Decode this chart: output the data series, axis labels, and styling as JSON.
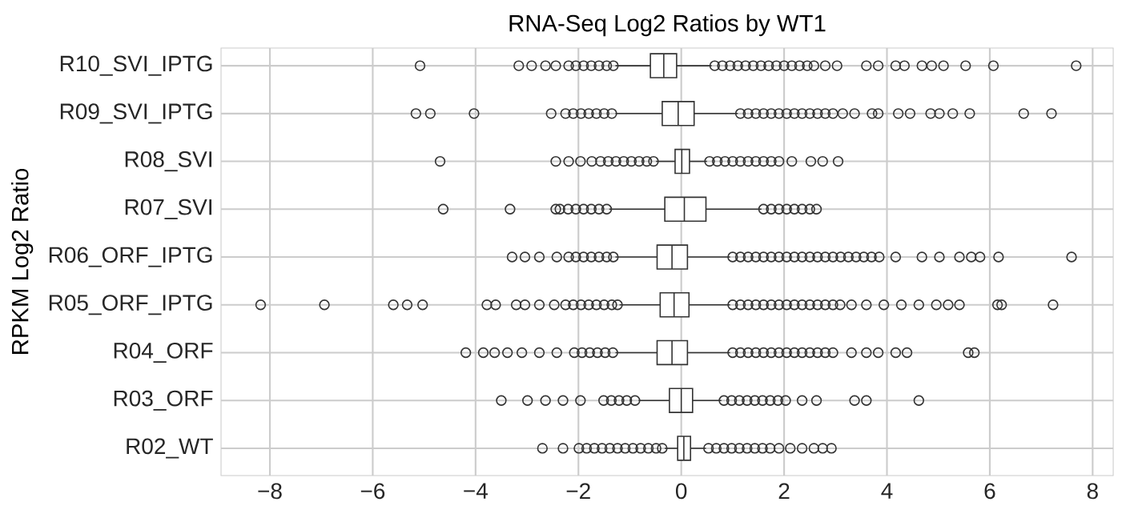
{
  "chart_data": {
    "type": "box",
    "orientation": "horizontal",
    "title": "RNA-Seq Log2 Ratios by WT1",
    "ylabel": "RPKM Log2 Ratio",
    "categories": [
      "R10_SVI_IPTG",
      "R09_SVI_IPTG",
      "R08_SVI",
      "R07_SVI",
      "R06_ORF_IPTG",
      "R05_ORF_IPTG",
      "R04_ORF",
      "R03_ORF",
      "R02_WT"
    ],
    "color": "#333333",
    "marker": "circle",
    "grid": true,
    "xlim": [
      -8.95,
      8.4
    ],
    "xticks": [
      {
        "value": -8,
        "label": "−8"
      },
      {
        "value": -6,
        "label": "−6"
      },
      {
        "value": -4,
        "label": "−4"
      },
      {
        "value": -2,
        "label": "−2"
      },
      0,
      2,
      4,
      6,
      8
    ],
    "boxes": [
      {
        "low": -1.28,
        "q1": -0.6,
        "median": -0.34,
        "q3": -0.09,
        "high": 0.59,
        "outliers": [
          -5.08,
          -3.16,
          -2.91,
          -2.64,
          -2.44,
          -2.19,
          -2.05,
          -1.9,
          -1.75,
          -1.6,
          -1.45,
          -1.32,
          0.65,
          0.8,
          0.95,
          1.1,
          1.25,
          1.4,
          1.55,
          1.7,
          1.85,
          2.0,
          2.15,
          2.3,
          2.45,
          2.58,
          2.8,
          3.03,
          3.6,
          3.83,
          4.17,
          4.34,
          4.68,
          4.87,
          5.1,
          5.53,
          6.07,
          7.68
        ]
      },
      {
        "low": -1.28,
        "q1": -0.37,
        "median": -0.06,
        "q3": 0.25,
        "high": 1.1,
        "outliers": [
          -5.16,
          -4.88,
          -4.03,
          -2.53,
          -2.25,
          -2.1,
          -1.95,
          -1.8,
          -1.65,
          -1.5,
          -1.35,
          1.15,
          1.3,
          1.45,
          1.6,
          1.75,
          1.9,
          2.05,
          2.2,
          2.35,
          2.5,
          2.65,
          2.8,
          2.95,
          3.14,
          3.37,
          3.71,
          3.83,
          4.22,
          4.45,
          4.85,
          5.02,
          5.28,
          5.61,
          6.66,
          7.2
        ]
      },
      {
        "low": -0.49,
        "q1": -0.12,
        "median": 0.01,
        "q3": 0.16,
        "high": 0.5,
        "outliers": [
          -4.69,
          -2.44,
          -2.19,
          -1.96,
          -1.74,
          -1.57,
          -1.42,
          -1.27,
          -1.12,
          -0.97,
          -0.82,
          -0.67,
          -0.54,
          0.55,
          0.7,
          0.85,
          1.0,
          1.15,
          1.3,
          1.45,
          1.6,
          1.75,
          1.9,
          2.15,
          2.52,
          2.75,
          3.05
        ]
      },
      {
        "low": -1.4,
        "q1": -0.32,
        "median": 0.06,
        "q3": 0.48,
        "high": 1.56,
        "outliers": [
          -4.63,
          -3.33,
          -2.44,
          -2.36,
          -2.2,
          -2.05,
          -1.9,
          -1.75,
          -1.6,
          -1.45,
          1.6,
          1.75,
          1.9,
          2.05,
          2.2,
          2.35,
          2.5,
          2.63
        ]
      },
      {
        "low": -1.28,
        "q1": -0.47,
        "median": -0.18,
        "q3": 0.12,
        "high": 0.95,
        "outliers": [
          -3.29,
          -3.04,
          -2.76,
          -2.42,
          -2.19,
          -2.05,
          -1.9,
          -1.75,
          -1.6,
          -1.45,
          -1.32,
          1.0,
          1.15,
          1.3,
          1.45,
          1.6,
          1.75,
          1.9,
          2.05,
          2.2,
          2.35,
          2.5,
          2.65,
          2.8,
          2.95,
          3.1,
          3.25,
          3.4,
          3.55,
          3.7,
          3.85,
          4.17,
          4.68,
          5.02,
          5.41,
          5.64,
          5.81,
          6.17,
          7.59
        ]
      },
      {
        "low": -1.2,
        "q1": -0.41,
        "median": -0.14,
        "q3": 0.15,
        "high": 0.95,
        "outliers": [
          -8.18,
          -6.94,
          -5.6,
          -5.33,
          -5.03,
          -3.78,
          -3.61,
          -3.21,
          -3.04,
          -2.76,
          -2.47,
          -2.25,
          -2.1,
          -1.95,
          -1.8,
          -1.65,
          -1.5,
          -1.35,
          -1.24,
          1.0,
          1.15,
          1.3,
          1.45,
          1.6,
          1.75,
          1.9,
          2.05,
          2.2,
          2.35,
          2.5,
          2.65,
          2.8,
          2.95,
          3.09,
          3.31,
          3.6,
          3.94,
          4.28,
          4.62,
          4.96,
          5.19,
          5.41,
          6.15,
          6.23,
          7.23
        ]
      },
      {
        "low": -1.28,
        "q1": -0.47,
        "median": -0.18,
        "q3": 0.12,
        "high": 0.95,
        "outliers": [
          -4.19,
          -3.85,
          -3.63,
          -3.38,
          -3.1,
          -2.76,
          -2.42,
          -2.08,
          -1.93,
          -1.78,
          -1.63,
          -1.48,
          -1.33,
          1.0,
          1.15,
          1.3,
          1.45,
          1.6,
          1.75,
          1.9,
          2.05,
          2.2,
          2.35,
          2.5,
          2.65,
          2.8,
          2.95,
          3.31,
          3.6,
          3.83,
          4.17,
          4.39,
          5.58,
          5.7
        ]
      },
      {
        "low": -0.83,
        "q1": -0.23,
        "median": 0.0,
        "q3": 0.22,
        "high": 0.78,
        "outliers": [
          -3.5,
          -2.99,
          -2.64,
          -2.3,
          -1.96,
          -1.51,
          -1.36,
          -1.21,
          -1.06,
          -0.9,
          0.83,
          0.98,
          1.13,
          1.28,
          1.43,
          1.58,
          1.73,
          1.88,
          2.03,
          2.35,
          2.63,
          3.37,
          3.6,
          4.62
        ]
      },
      {
        "low": -0.32,
        "q1": -0.07,
        "median": 0.05,
        "q3": 0.18,
        "high": 0.48,
        "outliers": [
          -2.7,
          -2.3,
          -1.99,
          -1.84,
          -1.69,
          -1.54,
          -1.39,
          -1.24,
          -1.09,
          -0.94,
          -0.79,
          -0.64,
          -0.49,
          -0.37,
          0.53,
          0.68,
          0.83,
          0.98,
          1.13,
          1.28,
          1.43,
          1.58,
          1.73,
          1.9,
          2.12,
          2.35,
          2.58,
          2.75,
          2.92
        ]
      }
    ]
  }
}
